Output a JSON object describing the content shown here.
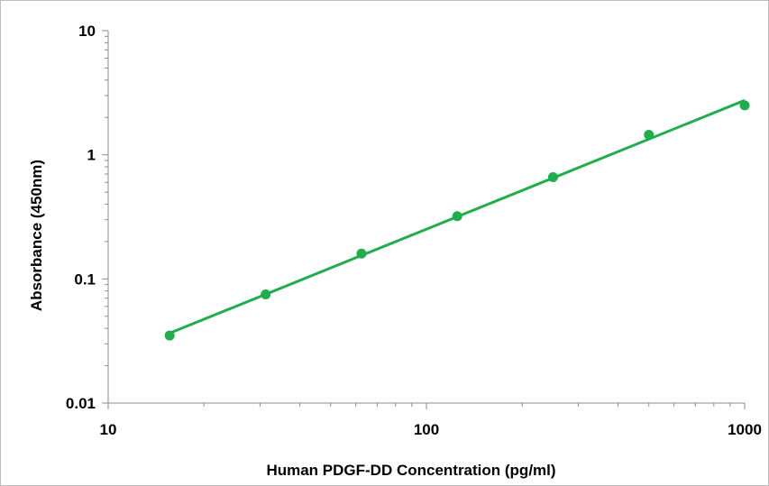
{
  "chart_data": {
    "type": "scatter",
    "title": "",
    "xlabel": "Human PDGF-DD Concentration (pg/ml)",
    "ylabel": "Absorbance (450nm)",
    "xscale": "log",
    "yscale": "log",
    "xlim": [
      10,
      1000
    ],
    "ylim": [
      0.01,
      10
    ],
    "x_ticks": [
      "10",
      "100",
      "1000"
    ],
    "y_ticks": [
      "0.01",
      "0.1",
      "1",
      "10"
    ],
    "grid": false,
    "legend": "none",
    "series": [
      {
        "x": [
          15.6,
          31.25,
          62.5,
          125,
          250,
          500,
          1000
        ],
        "y": [
          0.035,
          0.075,
          0.16,
          0.32,
          0.66,
          1.45,
          2.5
        ],
        "color": "#1fae4b",
        "trendline": "power"
      }
    ]
  }
}
